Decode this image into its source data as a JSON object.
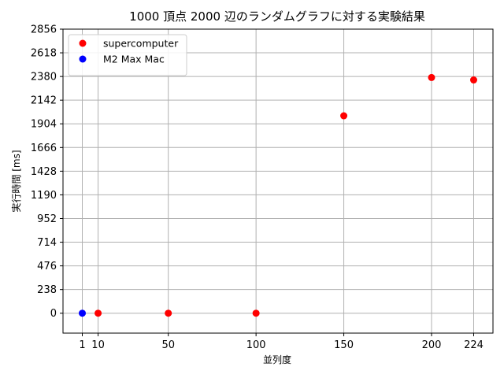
{
  "chart_data": {
    "type": "scatter",
    "title": "1000 頂点 2000 辺のランダムグラフに対する実験結果",
    "xlabel": "並列度",
    "ylabel": "実行時間 [ms]",
    "xticks": [
      1,
      10,
      50,
      100,
      150,
      200,
      224
    ],
    "yticks": [
      0,
      238,
      476,
      714,
      952,
      1190,
      1428,
      1666,
      1904,
      2142,
      2380,
      2618,
      2856
    ],
    "xlim": [
      -10,
      235
    ],
    "ylim": [
      -200,
      2856
    ],
    "grid": true,
    "legend_position": "top-left",
    "series": [
      {
        "name": "supercomputer",
        "color": "#ff0000",
        "points": [
          [
            10,
            0
          ],
          [
            50,
            0
          ],
          [
            100,
            0
          ],
          [
            150,
            1985
          ],
          [
            200,
            2370
          ],
          [
            224,
            2345
          ]
        ]
      },
      {
        "name": "M2 Max Mac",
        "color": "#0000ff",
        "points": [
          [
            1,
            0
          ]
        ]
      }
    ]
  }
}
